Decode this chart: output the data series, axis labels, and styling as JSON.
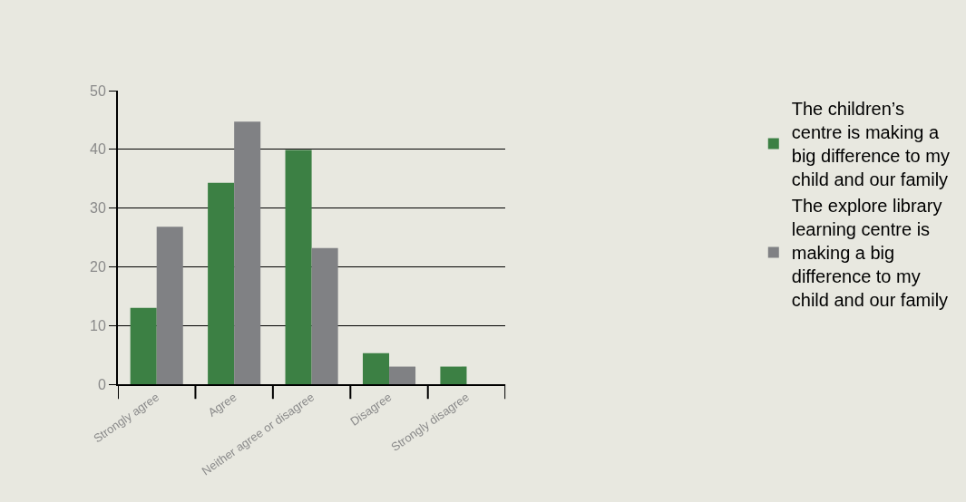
{
  "chart_data": {
    "type": "bar",
    "categories": [
      "Strongly agree",
      "Agree",
      "Neither agree or disagree",
      "Disagree",
      "Strongly disagree"
    ],
    "series": [
      {
        "name": "The children’s centre is making a big difference to my child and our family",
        "color": "#3c8044",
        "values": [
          13,
          34.3,
          39.9,
          5.3,
          3
        ]
      },
      {
        "name": "The explore library learning centre is making a big difference to my child and our family",
        "color": "#808184",
        "values": [
          26.8,
          44.7,
          23.2,
          3,
          null
        ]
      }
    ],
    "ylim": [
      0,
      50
    ],
    "yticks": [
      0,
      10,
      20,
      30,
      40,
      50
    ],
    "grid": "y",
    "legend": "right"
  }
}
